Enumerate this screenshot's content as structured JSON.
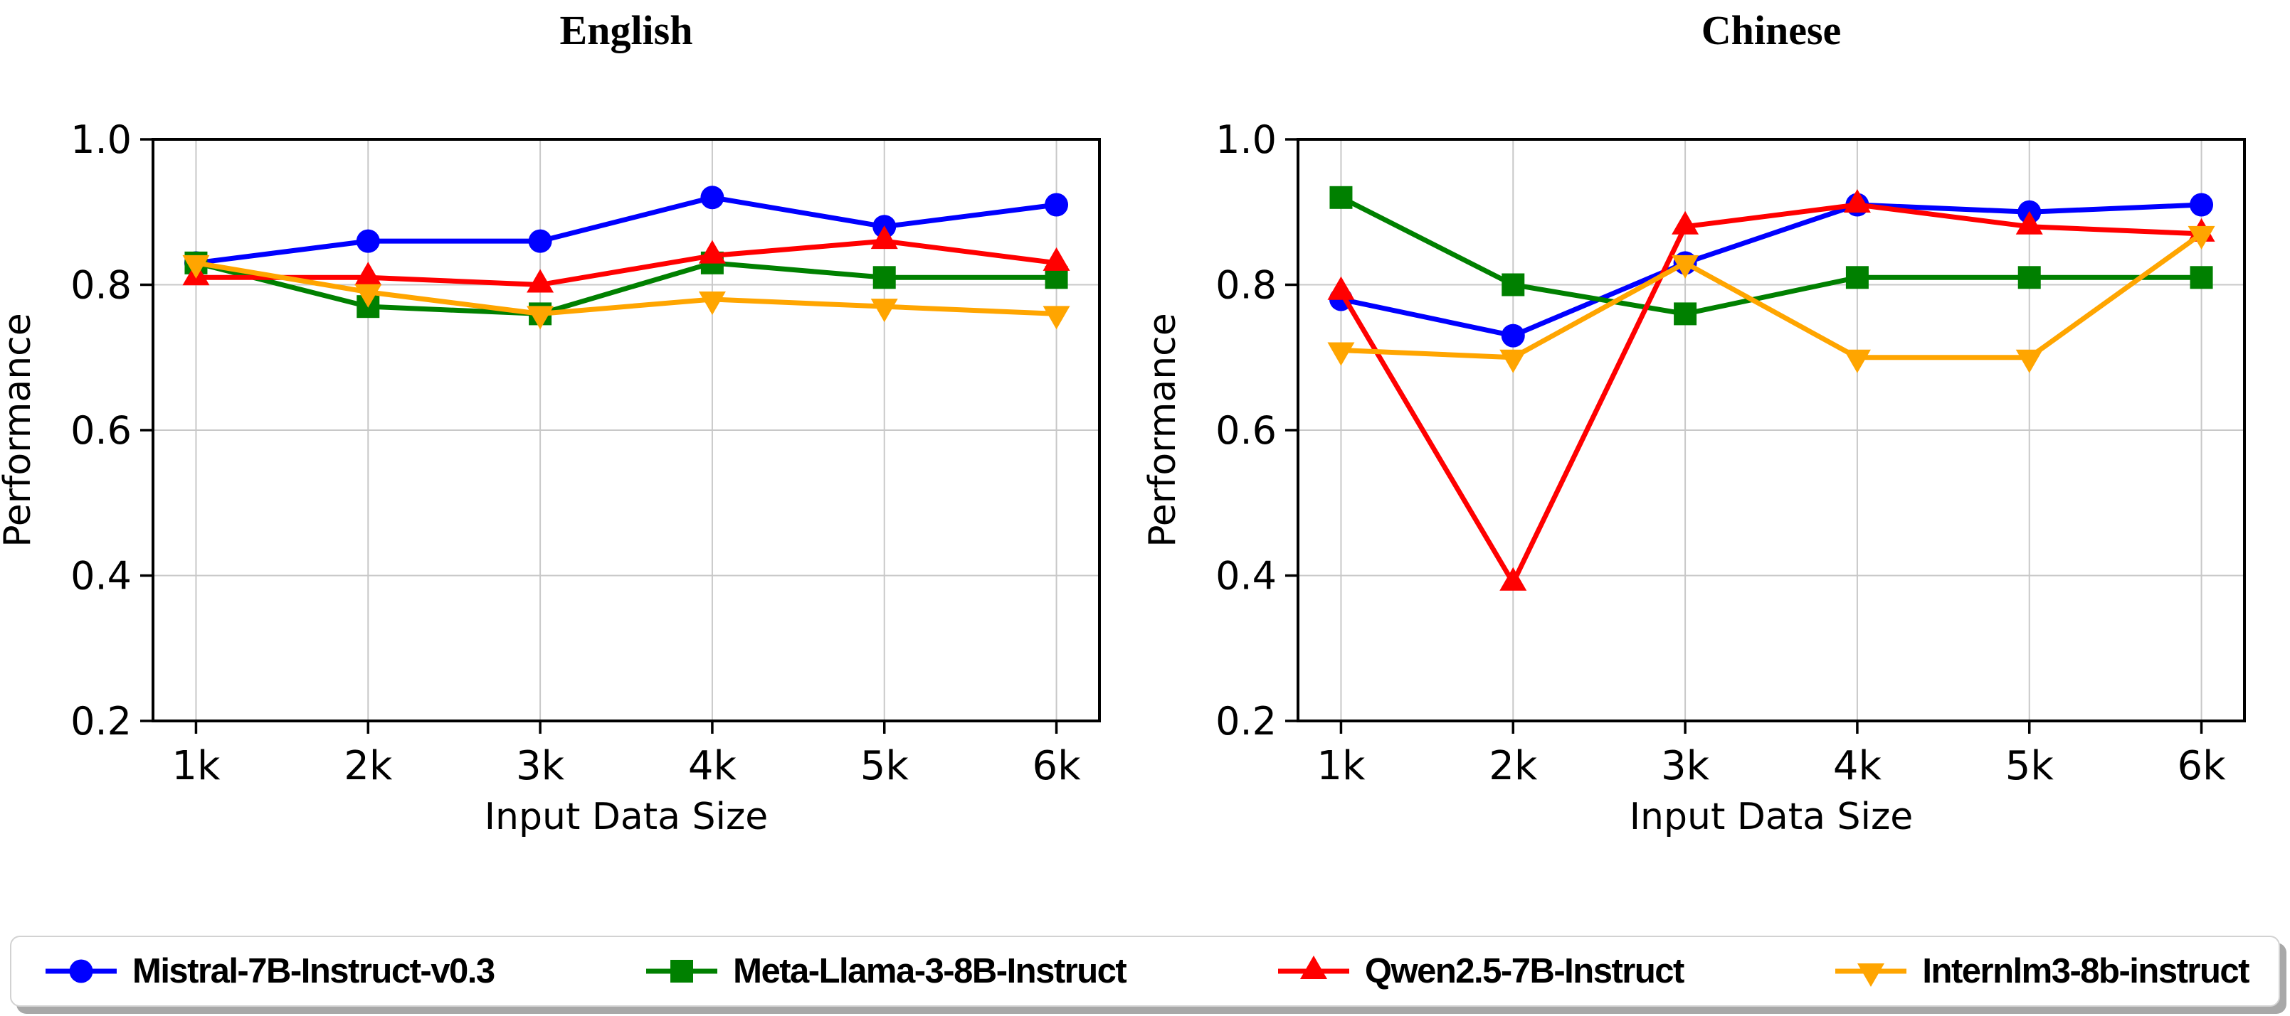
{
  "figure": {
    "background": "#ffffff",
    "axis_color": "#000000",
    "grid_color": "#c8c8c8",
    "tick_label_color": "#000000"
  },
  "chart_data": [
    {
      "type": "line",
      "title": "English",
      "xlabel": "Input Data Size",
      "ylabel": "Performance",
      "categories": [
        "1k",
        "2k",
        "3k",
        "4k",
        "5k",
        "6k"
      ],
      "ylim": [
        0.2,
        1.0
      ],
      "yticks": [
        0.2,
        0.4,
        0.6,
        0.8,
        1.0
      ],
      "grid": true,
      "legend_position": "bottom-shared",
      "series": [
        {
          "name": "Mistral-7B-Instruct-v0.3",
          "color": "#0000ff",
          "marker": "circle",
          "values": [
            0.83,
            0.86,
            0.86,
            0.92,
            0.88,
            0.91
          ]
        },
        {
          "name": "Meta-Llama-3-8B-Instruct",
          "color": "#008000",
          "marker": "square",
          "values": [
            0.83,
            0.77,
            0.76,
            0.83,
            0.81,
            0.81
          ]
        },
        {
          "name": "Qwen2.5-7B-Instruct",
          "color": "#ff0000",
          "marker": "triangle-up",
          "values": [
            0.81,
            0.81,
            0.8,
            0.84,
            0.86,
            0.83
          ]
        },
        {
          "name": "Internlm3-8b-instruct",
          "color": "#ffa500",
          "marker": "triangle-down",
          "values": [
            0.83,
            0.79,
            0.76,
            0.78,
            0.77,
            0.76
          ]
        }
      ]
    },
    {
      "type": "line",
      "title": "Chinese",
      "xlabel": "Input Data Size",
      "ylabel": "Performance",
      "categories": [
        "1k",
        "2k",
        "3k",
        "4k",
        "5k",
        "6k"
      ],
      "ylim": [
        0.2,
        1.0
      ],
      "yticks": [
        0.2,
        0.4,
        0.6,
        0.8,
        1.0
      ],
      "grid": true,
      "legend_position": "bottom-shared",
      "series": [
        {
          "name": "Mistral-7B-Instruct-v0.3",
          "color": "#0000ff",
          "marker": "circle",
          "values": [
            0.78,
            0.73,
            0.83,
            0.91,
            0.9,
            0.91
          ]
        },
        {
          "name": "Meta-Llama-3-8B-Instruct",
          "color": "#008000",
          "marker": "square",
          "values": [
            0.92,
            0.8,
            0.76,
            0.81,
            0.81,
            0.81
          ]
        },
        {
          "name": "Qwen2.5-7B-Instruct",
          "color": "#ff0000",
          "marker": "triangle-up",
          "values": [
            0.79,
            0.39,
            0.88,
            0.91,
            0.88,
            0.87
          ]
        },
        {
          "name": "Internlm3-8b-instruct",
          "color": "#ffa500",
          "marker": "triangle-down",
          "values": [
            0.71,
            0.7,
            0.83,
            0.7,
            0.7,
            0.87
          ]
        }
      ]
    }
  ],
  "legend": {
    "items": [
      {
        "label": "Mistral-7B-Instruct-v0.3",
        "color": "#0000ff",
        "marker": "circle"
      },
      {
        "label": "Meta-Llama-3-8B-Instruct",
        "color": "#008000",
        "marker": "square"
      },
      {
        "label": "Qwen2.5-7B-Instruct",
        "color": "#ff0000",
        "marker": "triangle-up"
      },
      {
        "label": "Internlm3-8b-instruct",
        "color": "#ffa500",
        "marker": "triangle-down"
      }
    ]
  }
}
